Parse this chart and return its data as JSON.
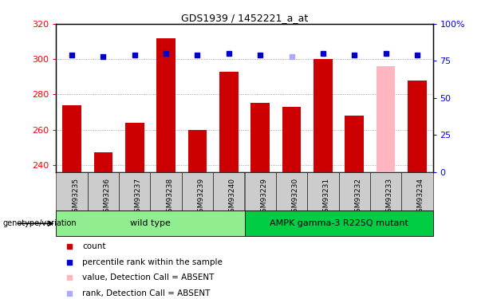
{
  "title": "GDS1939 / 1452221_a_at",
  "samples": [
    "GSM93235",
    "GSM93236",
    "GSM93237",
    "GSM93238",
    "GSM93239",
    "GSM93240",
    "GSM93229",
    "GSM93230",
    "GSM93231",
    "GSM93232",
    "GSM93233",
    "GSM93234"
  ],
  "count_values": [
    274,
    247,
    264,
    312,
    260,
    293,
    275,
    273,
    300,
    268,
    null,
    288
  ],
  "count_absent": [
    null,
    null,
    null,
    null,
    null,
    null,
    null,
    null,
    null,
    null,
    296,
    null
  ],
  "rank_values": [
    79,
    78,
    79,
    80,
    79,
    80,
    79,
    null,
    80,
    79,
    80,
    79
  ],
  "rank_absent": [
    null,
    null,
    null,
    null,
    null,
    null,
    null,
    78,
    null,
    null,
    null,
    null
  ],
  "ylim_left": [
    236,
    320
  ],
  "ylim_right": [
    0,
    100
  ],
  "yticks_left": [
    240,
    260,
    280,
    300,
    320
  ],
  "yticks_right": [
    0,
    25,
    50,
    75,
    100
  ],
  "ytick_labels_right": [
    "0",
    "25",
    "50",
    "75",
    "100%"
  ],
  "groups": [
    {
      "label": "wild type",
      "indices": [
        0,
        1,
        2,
        3,
        4,
        5
      ],
      "color": "#90EE90"
    },
    {
      "label": "AMPK gamma-3 R225Q mutant",
      "indices": [
        6,
        7,
        8,
        9,
        10,
        11
      ],
      "color": "#00CC44"
    }
  ],
  "bar_color_present": "#CC0000",
  "bar_color_absent": "#FFB6C1",
  "rank_color_present": "#0000CC",
  "rank_color_absent": "#AAAAFF",
  "rank_marker_size": 5,
  "grid_color": "#888888",
  "sample_bg_color": "#CCCCCC",
  "genotype_label": "genotype/variation",
  "legend_items": [
    "count",
    "percentile rank within the sample",
    "value, Detection Call = ABSENT",
    "rank, Detection Call = ABSENT"
  ],
  "legend_colors": [
    "#CC0000",
    "#0000CC",
    "#FFB6C1",
    "#AAAAFF"
  ]
}
